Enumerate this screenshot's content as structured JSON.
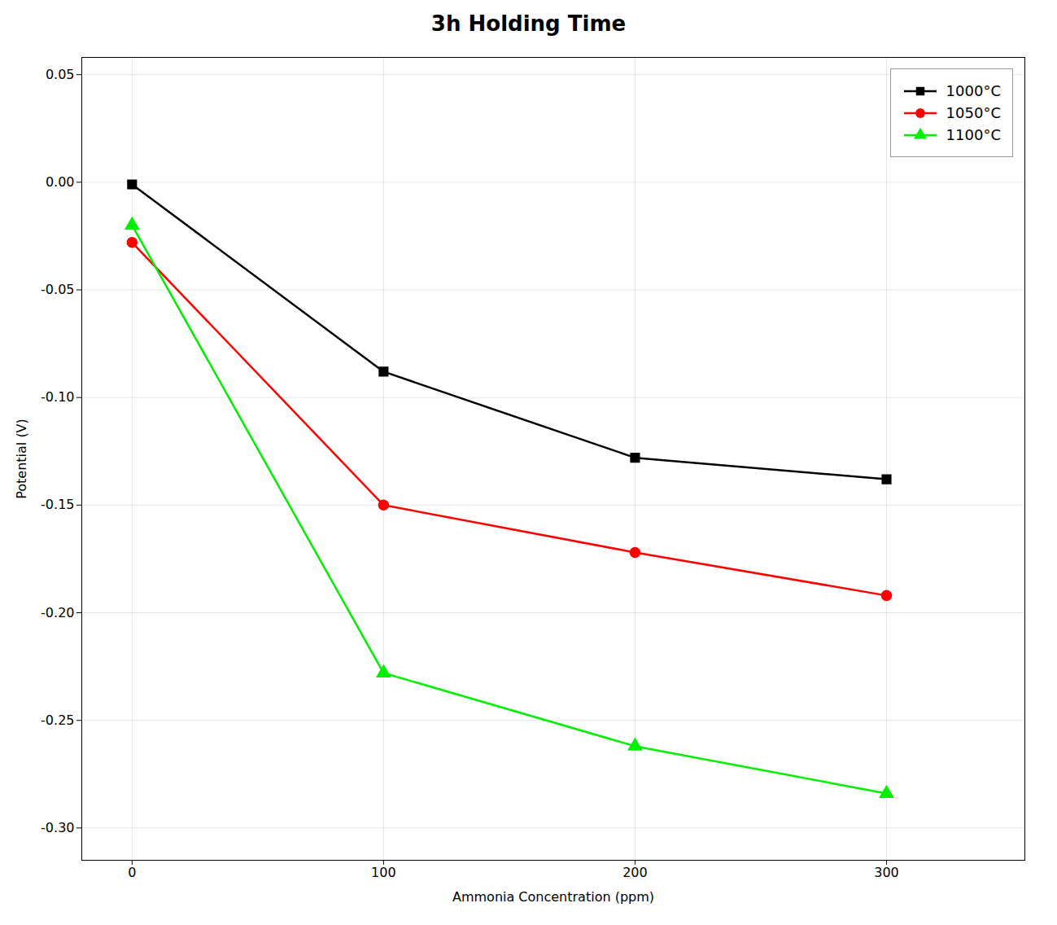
{
  "chart_data": {
    "type": "line",
    "title": "3h Holding Time",
    "xlabel": "Ammonia Concentration (ppm)",
    "ylabel": "Potential (V)",
    "xlim": [
      -20,
      355
    ],
    "xticks": [
      0,
      100,
      200,
      300
    ],
    "ylim": [
      -0.315,
      0.058
    ],
    "yticks": [
      0.05,
      {
        "value": 0,
        "label": "0.00"
      },
      -0.05,
      {
        "value": -0.1,
        "label": "-0.10"
      },
      -0.15,
      {
        "value": -0.2,
        "label": "-0.20"
      },
      -0.25,
      {
        "value": -0.3,
        "label": "-0.30"
      }
    ],
    "grid": true,
    "legend": "upper right",
    "x": [
      0,
      100,
      200,
      300
    ],
    "series": [
      {
        "name": "1000°C",
        "color": "black",
        "marker": "square",
        "values": [
          -0.001,
          -0.088,
          -0.128,
          -0.138
        ]
      },
      {
        "name": "1050°C",
        "color": "red",
        "marker": "circle",
        "values": [
          -0.028,
          -0.15,
          -0.172,
          -0.192
        ]
      },
      {
        "name": "1100°C",
        "color": "#00ee00",
        "marker": "triangle",
        "values": [
          -0.02,
          -0.228,
          -0.262,
          -0.284
        ]
      }
    ]
  }
}
